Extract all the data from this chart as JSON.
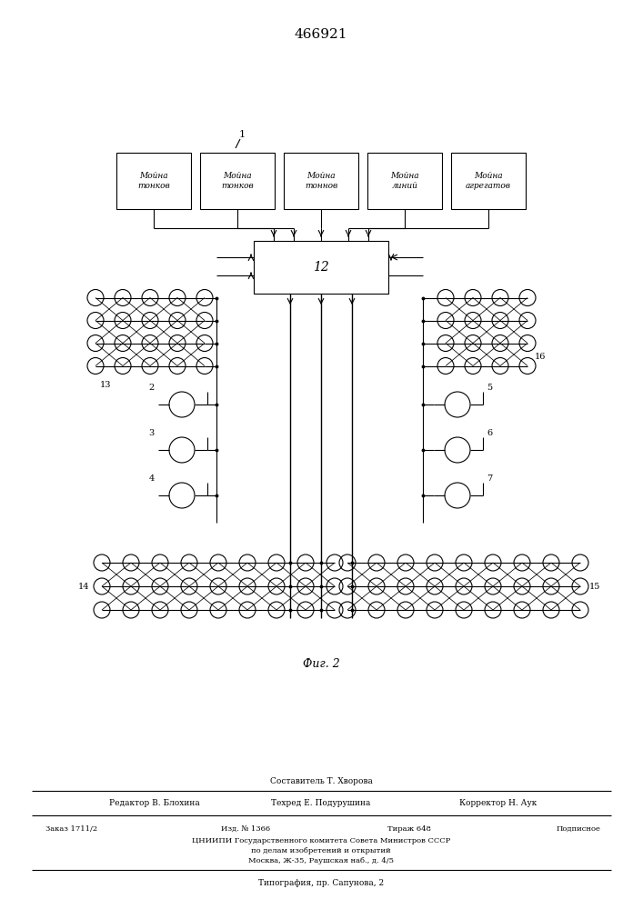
{
  "patent_number": "466921",
  "figure_label": "Фиг. 2",
  "bg": "#ffffff",
  "lc": "#000000",
  "top_box_labels": [
    "Мойна\nтонков",
    "Мойна\nтонков",
    "Мойна\nтоннов",
    "Мойна\nлиний",
    "Мойна\nагрегатов"
  ],
  "footer_composer": "Составитель Т. Хворова",
  "footer_editor": "Редактор В. Блохина",
  "footer_tehred": "Техред Е. Подурушина",
  "footer_korrektor": "Корректор Н. Аук",
  "footer_order": "Заказ 1711/2",
  "footer_izd": "Изд. № 1366",
  "footer_tirazh": "Тираж 648",
  "footer_podpisnoe": "Подписное",
  "footer_cniipи": "ЦНИИПИ Государственного комитета Совета Министров СССР",
  "footer_po_delam": "по делам изобретений и открытий",
  "footer_moskva": "Москва, Ж-35, Раушская наб., д. 4/5",
  "footer_tipografia": "Типография, пр. Сапунова, 2"
}
